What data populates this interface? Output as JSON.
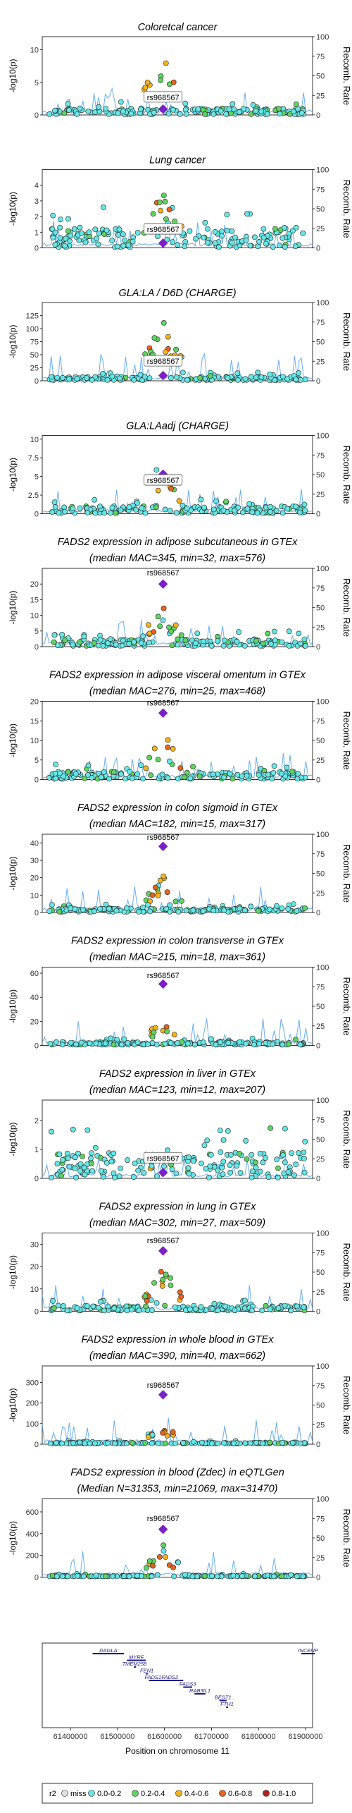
{
  "colors": {
    "miss": "#e0e0e0",
    "r2_0.0-0.2": "#66e6e6",
    "r2_0.2-0.4": "#5fd35f",
    "r2_0.4-0.6": "#f4b21e",
    "r2_0.6-0.8": "#e8631f",
    "r2_0.8-1.0": "#b22020",
    "lead": "#7b1fc7",
    "recomb": "#4d9ff0"
  },
  "labels": {
    "ylabel_left": "-log10(p)",
    "ylabel_right": "Recomb. Rate",
    "xlabel": "Position on chromosome 11",
    "snp": "rs968567"
  },
  "x_axis": {
    "ticks": [
      61400000,
      61500000,
      61600000,
      61700000,
      61800000,
      61900000
    ],
    "tick_labels": [
      "61400000",
      "61500000",
      "61600000",
      "61700000",
      "61800000",
      "61900000"
    ]
  },
  "legend": {
    "title": "r2",
    "items": [
      {
        "label": "miss",
        "color_key": "miss"
      },
      {
        "label": "0.0-0.2",
        "color_key": "r2_0.0-0.2"
      },
      {
        "label": "0.2-0.4",
        "color_key": "r2_0.2-0.4"
      },
      {
        "label": "0.4-0.6",
        "color_key": "r2_0.4-0.6"
      },
      {
        "label": "0.6-0.8",
        "color_key": "r2_0.6-0.8"
      },
      {
        "label": "0.8-1.0",
        "color_key": "r2_0.8-1.0"
      }
    ]
  },
  "genes": [
    {
      "name": "DAGLA",
      "start": 61447000,
      "end": 61514000
    },
    {
      "name": "MYRF",
      "start": 61520000,
      "end": 61560000
    },
    {
      "name": "TMEM258",
      "start": 61535000,
      "end": 61537000
    },
    {
      "name": "FEN1",
      "start": 61560000,
      "end": 61565000
    },
    {
      "name": "FADS2",
      "start": 61583000,
      "end": 61640000
    },
    {
      "name": "FADS1",
      "start": 61567000,
      "end": 61584000
    },
    {
      "name": "FADS3",
      "start": 61640000,
      "end": 61659000
    },
    {
      "name": "RAB3IL1",
      "start": 61664000,
      "end": 61687000
    },
    {
      "name": "BEST1",
      "start": 61717000,
      "end": 61732000
    },
    {
      "name": "FTH1",
      "start": 61731000,
      "end": 61735000
    },
    {
      "name": "INCENP",
      "start": 61891000,
      "end": 61920000
    }
  ],
  "chart_data": [
    {
      "type": "scatter",
      "title": "Coloretcal cancer",
      "subtitle": "",
      "ylim": [
        0,
        12
      ],
      "yticks": [
        0,
        5,
        10
      ],
      "y2ticks": [
        0,
        25,
        50,
        75,
        100
      ],
      "lead": {
        "x": 61597000,
        "y": 0.9
      },
      "label_box": true,
      "label_y": 2.5,
      "peak": 10.5,
      "base": 1.0,
      "recomb_scale": 0.08,
      "seed": 11
    },
    {
      "type": "scatter",
      "title": "Lung cancer",
      "subtitle": "",
      "ylim": [
        0,
        5
      ],
      "yticks": [
        0,
        1,
        2,
        3,
        4
      ],
      "y2ticks": [
        0,
        25,
        50,
        75,
        100
      ],
      "lead": {
        "x": 61597000,
        "y": 0.3
      },
      "label_box": true,
      "label_y": 1.1,
      "peak": 4.3,
      "base": 1.3,
      "recomb_scale": 0.2,
      "seed": 23
    },
    {
      "type": "scatter",
      "title": "GLA:LA / D6D (CHARGE)",
      "subtitle": "",
      "ylim": [
        0,
        150
      ],
      "yticks": [
        0,
        25,
        50,
        75,
        100,
        125
      ],
      "y2ticks": [
        0,
        25,
        50,
        75,
        100
      ],
      "lead": {
        "x": 61597000,
        "y": 10
      },
      "label_box": true,
      "label_y": 35,
      "peak": 125,
      "base": 8,
      "recomb_scale": 10,
      "seed": 37
    },
    {
      "type": "scatter",
      "title": "GLA:LAadj (CHARGE)",
      "subtitle": "",
      "ylim": [
        0,
        10.5
      ],
      "yticks": [
        0,
        2.5,
        5,
        7.5,
        10
      ],
      "y2ticks": [
        0,
        25,
        50,
        75,
        100
      ],
      "lead": {
        "x": 61597000,
        "y": 5.3
      },
      "label_box": true,
      "label_y": 4.3,
      "peak": 8.0,
      "base": 1.0,
      "recomb_scale": 0.7,
      "seed": 41
    },
    {
      "type": "scatter",
      "title": "FADS2 expression in adipose subcutaneous in GTEx",
      "subtitle": "(median MAC=345, min=32, max=576)",
      "ylim": [
        0,
        25
      ],
      "yticks": [
        0,
        5,
        10,
        15,
        20
      ],
      "y2ticks": [
        0,
        25,
        50,
        75,
        100
      ],
      "lead": {
        "x": 61597000,
        "y": 20
      },
      "label_box": false,
      "label_y": 23.2,
      "peak": 14,
      "base": 2.5,
      "recomb_scale": 1.7,
      "seed": 53
    },
    {
      "type": "scatter",
      "title": "FADS2 expression in adipose visceral omentum in GTEx",
      "subtitle": "(median MAC=276, min=25, max=468)",
      "ylim": [
        0,
        20
      ],
      "yticks": [
        0,
        5,
        10,
        15,
        20
      ],
      "y2ticks": [
        0,
        25,
        50,
        75,
        100
      ],
      "lead": {
        "x": 61597000,
        "y": 17
      },
      "label_box": false,
      "label_y": 19.3,
      "peak": 13,
      "base": 2.0,
      "recomb_scale": 1.4,
      "seed": 67
    },
    {
      "type": "scatter",
      "title": "FADS2 expression in colon sigmoid in GTEx",
      "subtitle": "(median MAC=182, min=15, max=317)",
      "ylim": [
        0,
        45
      ],
      "yticks": [
        0,
        10,
        20,
        30,
        40
      ],
      "y2ticks": [
        0,
        25,
        50,
        75,
        100
      ],
      "lead": {
        "x": 61597000,
        "y": 38
      },
      "label_box": false,
      "label_y": 42.5,
      "peak": 22,
      "base": 2.5,
      "recomb_scale": 3,
      "seed": 71
    },
    {
      "type": "scatter",
      "title": "FADS2 expression in colon transverse in GTEx",
      "subtitle": "(median MAC=215, min=18, max=361)",
      "ylim": [
        0,
        65
      ],
      "yticks": [
        0,
        20,
        40,
        60
      ],
      "y2ticks": [
        0,
        25,
        50,
        75,
        100
      ],
      "lead": {
        "x": 61597000,
        "y": 51
      },
      "label_box": false,
      "label_y": 57,
      "peak": 25,
      "base": 3,
      "recomb_scale": 5,
      "seed": 83
    },
    {
      "type": "scatter",
      "title": "FADS2 expression in liver in GTEx",
      "subtitle": "(median MAC=123, min=12, max=207)",
      "ylim": [
        0,
        2.7
      ],
      "yticks": [
        0,
        1,
        2
      ],
      "y2ticks": [
        0,
        25,
        50,
        75,
        100
      ],
      "lead": {
        "x": 61597000,
        "y": 0.2
      },
      "label_box": true,
      "label_y": 0.65,
      "peak": 1.2,
      "base": 0.9,
      "recomb_scale": 0.2,
      "seed": 97
    },
    {
      "type": "scatter",
      "title": "FADS2 expression in lung in GTEx",
      "subtitle": "(median MAC=302, min=27, max=509)",
      "ylim": [
        0,
        35
      ],
      "yticks": [
        0,
        10,
        20,
        30
      ],
      "y2ticks": [
        0,
        25,
        50,
        75,
        100
      ],
      "lead": {
        "x": 61597000,
        "y": 27
      },
      "label_box": false,
      "label_y": 31,
      "peak": 22,
      "base": 2.5,
      "recomb_scale": 2.7,
      "seed": 101
    },
    {
      "type": "scatter",
      "title": "FADS2 expression in whole blood in GTEx",
      "subtitle": "(median MAC=390, min=40, max=662)",
      "ylim": [
        0,
        380
      ],
      "yticks": [
        0,
        100,
        200,
        300
      ],
      "y2ticks": [
        0,
        25,
        50,
        75,
        100
      ],
      "lead": {
        "x": 61597000,
        "y": 240
      },
      "label_box": false,
      "label_y": 280,
      "peak": 95,
      "base": 8,
      "recomb_scale": 28,
      "seed": 113
    },
    {
      "type": "scatter",
      "title": "FADS2 expression in blood (Zdec) in eQTLGen",
      "subtitle": "(Median N=31353, min=21069, max=31470)",
      "ylim": [
        0,
        720
      ],
      "yticks": [
        0,
        200,
        400,
        600
      ],
      "y2ticks": [
        0,
        25,
        50,
        75,
        100
      ],
      "lead": {
        "x": 61597000,
        "y": 440
      },
      "label_box": false,
      "label_y": 530,
      "peak": 310,
      "base": 15,
      "recomb_scale": 55,
      "seed": 127
    }
  ]
}
